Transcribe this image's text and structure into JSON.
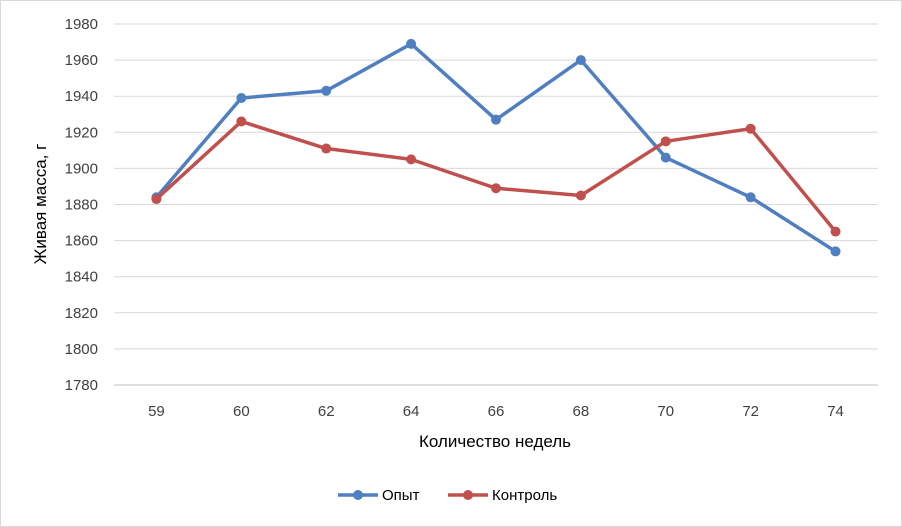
{
  "chart_data": {
    "type": "line",
    "title": "",
    "xlabel": "Количество недель",
    "ylabel": "Живая масса, г",
    "categories": [
      "59",
      "60",
      "62",
      "64",
      "66",
      "68",
      "70",
      "72",
      "74"
    ],
    "ylim": [
      1780,
      1980
    ],
    "ytick_step": 20,
    "grid": true,
    "legend_position": "bottom",
    "series": [
      {
        "name": "Опыт",
        "color": "#4F7FC0",
        "values": [
          1884,
          1939,
          1943,
          1969,
          1927,
          1960,
          1906,
          1884,
          1854
        ]
      },
      {
        "name": "Контроль",
        "color": "#C0504D",
        "values": [
          1883,
          1926,
          1911,
          1905,
          1889,
          1885,
          1915,
          1922,
          1865
        ]
      }
    ]
  }
}
